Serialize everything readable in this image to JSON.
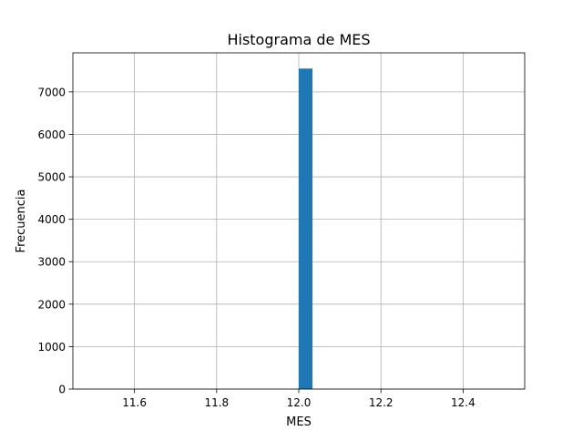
{
  "chart_data": {
    "type": "bar",
    "title": "Histograma de MES",
    "xlabel": "MES",
    "ylabel": "Frecuencia",
    "xlim": [
      11.45,
      12.55
    ],
    "ylim": [
      0,
      7920
    ],
    "x_ticks": [
      11.6,
      11.8,
      12.0,
      12.2,
      12.4
    ],
    "x_tick_labels": [
      "11.6",
      "11.8",
      "12.0",
      "12.2",
      "12.4"
    ],
    "y_ticks": [
      0,
      1000,
      2000,
      3000,
      4000,
      5000,
      6000,
      7000
    ],
    "y_tick_labels": [
      "0",
      "1000",
      "2000",
      "3000",
      "4000",
      "5000",
      "6000",
      "7000"
    ],
    "grid": true,
    "bars": [
      {
        "x_start": 12.0,
        "x_end": 12.0333,
        "value": 7550
      }
    ],
    "colors": {
      "bar": "#1f77b4",
      "grid": "#b0b0b0",
      "axis": "#000000"
    }
  }
}
